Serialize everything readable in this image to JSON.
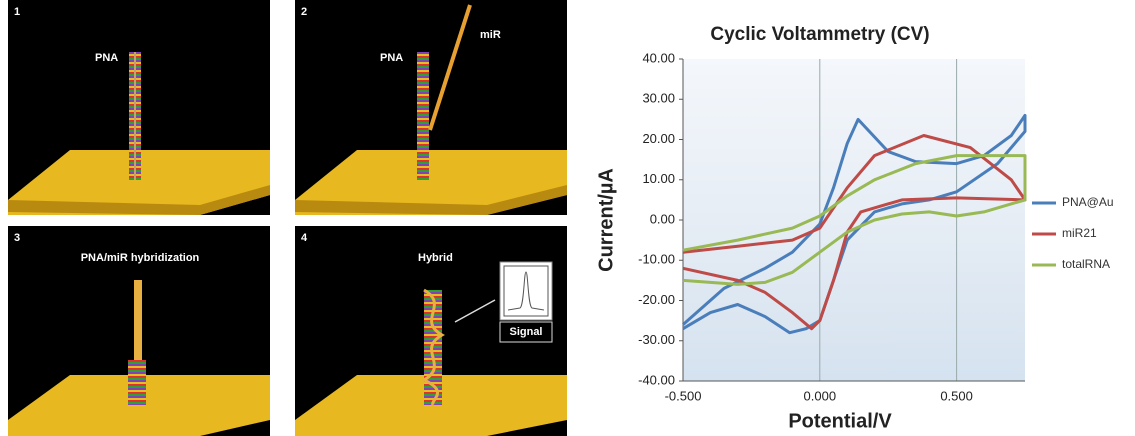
{
  "panels": [
    {
      "number": "1",
      "labels": [
        "PNA"
      ]
    },
    {
      "number": "2",
      "labels": [
        "PNA",
        "miR"
      ]
    },
    {
      "number": "3",
      "labels": [
        "PNA/miR hybridization"
      ]
    },
    {
      "number": "4",
      "labels": [
        "Hybrid",
        "Signal"
      ]
    }
  ],
  "chart_data": {
    "type": "line",
    "title": "Cyclic Voltammetry (CV)",
    "x_label": "Potential/V",
    "y_label": "Current/µA",
    "xlim": [
      -0.5,
      0.75
    ],
    "xticks": [
      {
        "value": -0.5,
        "label": "-0.500"
      },
      {
        "value": 0,
        "label": "0.000"
      },
      {
        "value": 0.5,
        "label": "0.500"
      }
    ],
    "ylim": [
      -40,
      40
    ],
    "yticks": [
      {
        "value": 40,
        "label": "40.00"
      },
      {
        "value": 30,
        "label": "30.00"
      },
      {
        "value": 20,
        "label": "20.00"
      },
      {
        "value": 10,
        "label": "10.00"
      },
      {
        "value": 0,
        "label": "0.00"
      },
      {
        "value": -10,
        "label": "-10.00"
      },
      {
        "value": -20,
        "label": "-20.00"
      },
      {
        "value": -30,
        "label": "-30.00"
      },
      {
        "value": -40,
        "label": "-40.00"
      }
    ],
    "grid": "x",
    "legend": "right",
    "series": [
      {
        "name": "PNA@Au",
        "color": "#4a7ebb",
        "x": [
          -0.5,
          -0.35,
          -0.2,
          -0.1,
          0,
          0.05,
          0.1,
          0.14,
          0.25,
          0.35,
          0.5,
          0.6,
          0.7,
          0.75,
          0.75,
          0.65,
          0.5,
          0.4,
          0.3,
          0.2,
          0.1,
          0.05,
          0,
          -0.05,
          -0.11,
          -0.2,
          -0.3,
          -0.4,
          -0.5
        ],
        "values": [
          -26,
          -17,
          -12,
          -8,
          -1,
          8,
          19,
          25,
          17,
          14.5,
          14,
          16,
          21,
          26,
          22,
          14,
          7,
          5,
          4,
          2,
          -5,
          -15,
          -25,
          -27,
          -28,
          -24,
          -21,
          -23,
          -27
        ]
      },
      {
        "name": "miR21",
        "color": "#be4b48",
        "x": [
          -0.5,
          -0.3,
          -0.2,
          -0.1,
          -0.03,
          0,
          0.05,
          0.1,
          0.15,
          0.3,
          0.5,
          0.75,
          0.7,
          0.55,
          0.38,
          0.2,
          0.1,
          0,
          -0.1,
          -0.3,
          -0.5
        ],
        "values": [
          -12,
          -15,
          -18,
          -23,
          -27,
          -25,
          -15,
          -3,
          2,
          5,
          5.5,
          5,
          10,
          18,
          21,
          16,
          8,
          -2,
          -5,
          -6.5,
          -8
        ]
      },
      {
        "name": "totalRNA",
        "color": "#98b954",
        "x": [
          -0.5,
          -0.3,
          -0.1,
          0,
          0.1,
          0.2,
          0.35,
          0.5,
          0.65,
          0.75,
          0.75,
          0.6,
          0.5,
          0.4,
          0.3,
          0.2,
          0.1,
          0,
          -0.1,
          -0.2,
          -0.3,
          -0.5
        ],
        "values": [
          -7.5,
          -5,
          -2,
          1,
          6,
          10,
          14,
          16,
          16,
          16,
          5,
          2,
          1,
          2,
          1.5,
          0,
          -3,
          -8,
          -13,
          -15.5,
          -16,
          -15
        ]
      }
    ]
  }
}
